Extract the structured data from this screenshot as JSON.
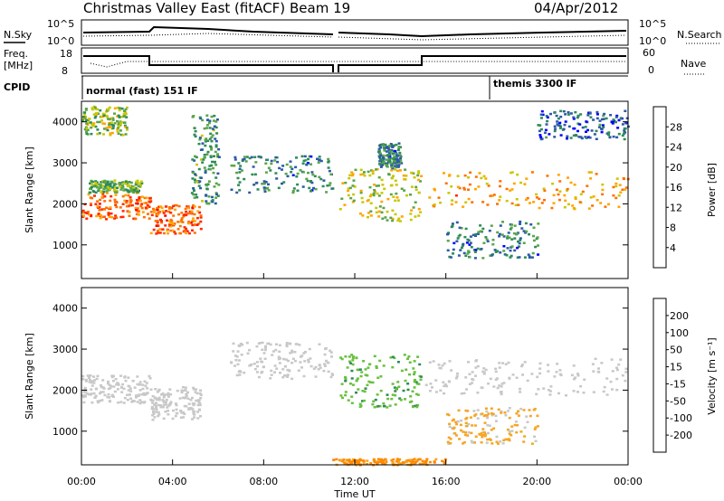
{
  "header": {
    "title": "Christmas Valley East (fitACF)",
    "beam": "Beam 19",
    "date": "04/Apr/2012"
  },
  "panels": {
    "nsky": {
      "left_label": "N.Sky",
      "right_label": "N.Search",
      "left_ticks": [
        "10^5",
        "10^0"
      ],
      "right_ticks": [
        "10^5",
        "10^0"
      ]
    },
    "freq": {
      "left_label_line1": "Freq.",
      "left_label_line2": "[MHz]",
      "left_ticks": [
        "18",
        "8"
      ],
      "right_label": "Nave",
      "right_ticks": [
        "60",
        "0"
      ]
    },
    "cpid": {
      "label": "CPID",
      "modes": [
        {
          "name": "normal (fast) 151 IF",
          "start": 0.0
        },
        {
          "name": "themis 3300 IF",
          "start": 17.85
        }
      ]
    }
  },
  "time_axis": {
    "label": "Time UT",
    "ticks": [
      "00:00",
      "04:00",
      "08:00",
      "12:00",
      "16:00",
      "20:00",
      "00:00"
    ]
  },
  "range_axis": {
    "label": "Slant Range [km]",
    "ticks": [
      "1000",
      "2000",
      "3000",
      "4000"
    ]
  },
  "power_scale": {
    "label": "Power [dB]",
    "ticks": [
      "4",
      "8",
      "12",
      "16",
      "20",
      "24",
      "28"
    ],
    "colors": [
      "#0000ff",
      "#2d5aa8",
      "#2e8b57",
      "#5aa54a",
      "#c8c800",
      "#ffa500",
      "#ff7000",
      "#ff2a00",
      "#ff0000"
    ]
  },
  "velocity_scale": {
    "label": "Velocity [m s⁻¹]",
    "ticks": [
      "200",
      "100",
      "50",
      "15",
      "-15",
      "-50",
      "-100",
      "-200"
    ],
    "colors": [
      "#1a2a9c",
      "#2a5b8c",
      "#2e8b57",
      "#6ac040",
      "#c8c8c8",
      "#f5a623",
      "#ff8a00",
      "#ff4a00",
      "#ff0000"
    ]
  },
  "chart_data": {
    "type": "heatmap",
    "title": "Christmas Valley East (fitACF)",
    "xlabel": "Time UT",
    "ylabel": "Slant Range [km]",
    "xlim": [
      0,
      24
    ],
    "ylim": [
      180,
      4500
    ],
    "power_bands": [
      {
        "t0": 0.0,
        "t1": 3.0,
        "r0": 1650,
        "r1": 2300,
        "value": 24
      },
      {
        "t0": 0.3,
        "t1": 2.6,
        "r0": 2300,
        "r1": 2600,
        "value": 12
      },
      {
        "t0": 0.0,
        "t1": 2.0,
        "r0": 3700,
        "r1": 4400,
        "value": 14
      },
      {
        "t0": 3.0,
        "t1": 5.2,
        "r0": 1300,
        "r1": 2000,
        "value": 24
      },
      {
        "t0": 4.8,
        "t1": 6.0,
        "r0": 2000,
        "r1": 4200,
        "value": 10
      },
      {
        "t0": 6.5,
        "t1": 11.0,
        "r0": 2300,
        "r1": 3200,
        "value": 8
      },
      {
        "t0": 11.3,
        "t1": 14.9,
        "r0": 1600,
        "r1": 2900,
        "value": 16
      },
      {
        "t0": 13.0,
        "t1": 14.0,
        "r0": 2900,
        "r1": 3500,
        "value": 8
      },
      {
        "t0": 15.0,
        "t1": 24.0,
        "r0": 1900,
        "r1": 2800,
        "value": 20
      },
      {
        "t0": 16.0,
        "t1": 20.0,
        "r0": 700,
        "r1": 1600,
        "value": 8
      },
      {
        "t0": 20.0,
        "t1": 24.0,
        "r0": 3600,
        "r1": 4300,
        "value": 6
      }
    ],
    "velocity_bands": [
      {
        "t0": 0.0,
        "t1": 3.0,
        "r0": 1700,
        "r1": 2400,
        "value": 0
      },
      {
        "t0": 3.0,
        "t1": 5.2,
        "r0": 1300,
        "r1": 2100,
        "value": 0
      },
      {
        "t0": 6.5,
        "t1": 11.0,
        "r0": 2300,
        "r1": 3200,
        "value": 0
      },
      {
        "t0": 11.3,
        "t1": 14.9,
        "r0": 1600,
        "r1": 2900,
        "value": 40
      },
      {
        "t0": 15.0,
        "t1": 24.0,
        "r0": 1900,
        "r1": 2800,
        "value": 0
      },
      {
        "t0": 16.0,
        "t1": 20.0,
        "r0": 700,
        "r1": 1600,
        "value": -20
      },
      {
        "t0": 11.0,
        "t1": 16.0,
        "r0": 200,
        "r1": 350,
        "value": -60
      }
    ]
  }
}
